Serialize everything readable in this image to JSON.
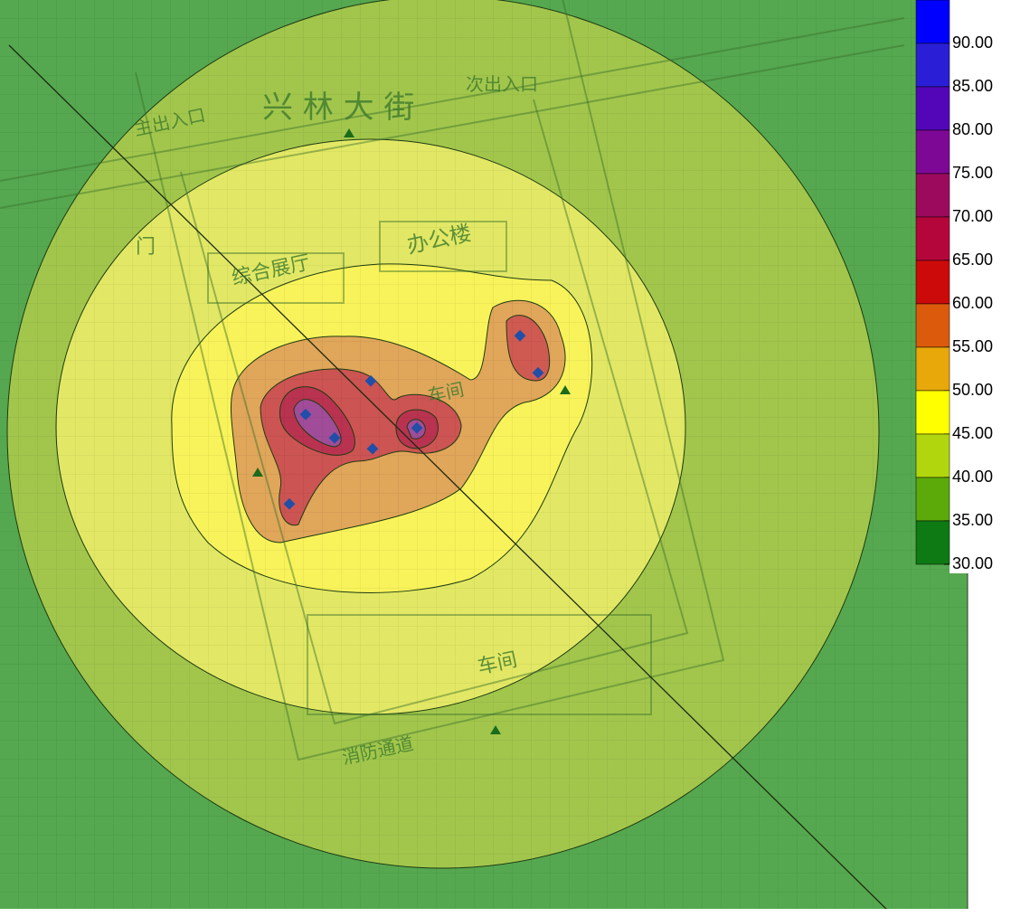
{
  "legend": {
    "levels": [
      {
        "value": 90,
        "label": "90.00"
      },
      {
        "value": 85,
        "label": "85.00"
      },
      {
        "value": 80,
        "label": "80.00"
      },
      {
        "value": 75,
        "label": "75.00"
      },
      {
        "value": 70,
        "label": "70.00"
      },
      {
        "value": 65,
        "label": "65.00"
      },
      {
        "value": 60,
        "label": "60.00"
      },
      {
        "value": 55,
        "label": "55.00"
      },
      {
        "value": 50,
        "label": "50.00"
      },
      {
        "value": 45,
        "label": "45.00"
      },
      {
        "value": 40,
        "label": "40.00"
      },
      {
        "value": 35,
        "label": "35.00"
      },
      {
        "value": 30,
        "label": "30.00"
      }
    ],
    "colors": [
      "#0000ff",
      "#2a1fd6",
      "#5206b8",
      "#7e0896",
      "#9c0a5e",
      "#b5063c",
      "#cc0a0a",
      "#dc5a0c",
      "#e8a80a",
      "#ffff00",
      "#b2d60e",
      "#5caa0a",
      "#0e7a14"
    ]
  },
  "map_labels": {
    "street": "兴  林  大  街",
    "side_entrance": "次出入口",
    "main_entrance": "主出入口",
    "office": "办公楼",
    "hall": "综合展厅",
    "workshop_1": "车间",
    "workshop_2": "车间",
    "gate": "门",
    "fire_road": "消防通道"
  }
}
